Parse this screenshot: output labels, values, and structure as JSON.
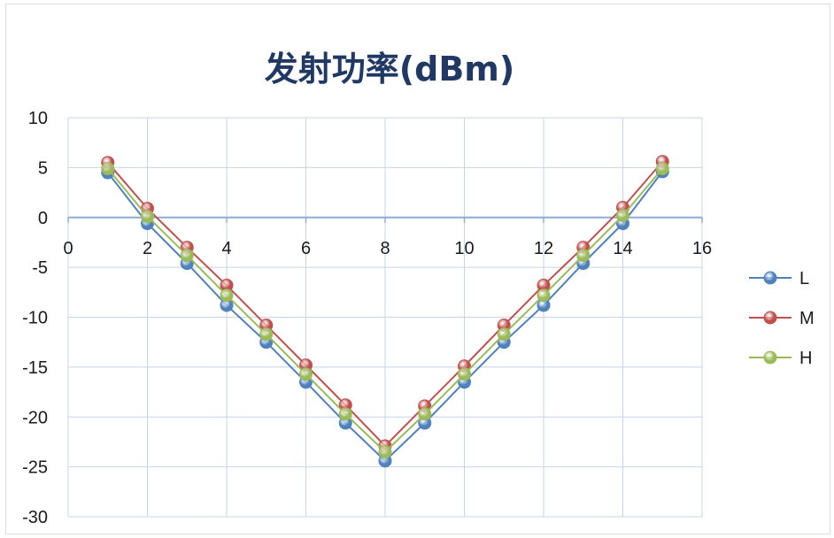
{
  "chart_data": {
    "type": "line",
    "title": "发射功率(dBm)",
    "xlabel": "",
    "ylabel": "",
    "xlim": [
      0,
      16
    ],
    "ylim": [
      -30,
      10
    ],
    "xticks": [
      "0",
      "2",
      "4",
      "6",
      "8",
      "10",
      "12",
      "14",
      "16"
    ],
    "yticks": [
      "10",
      "5",
      "0",
      "-5",
      "-10",
      "-15",
      "-20",
      "-25",
      "-30"
    ],
    "grid": true,
    "legend_position": "right",
    "x": [
      1,
      2,
      3,
      4,
      5,
      6,
      7,
      8,
      9,
      10,
      11,
      12,
      13,
      14,
      15
    ],
    "series": [
      {
        "name": "L",
        "color": "#4f81bd",
        "values": [
          4.5,
          -0.6,
          -4.6,
          -8.8,
          -12.5,
          -16.5,
          -20.6,
          -24.4,
          -20.6,
          -16.5,
          -12.5,
          -8.8,
          -4.6,
          -0.6,
          4.6
        ]
      },
      {
        "name": "M",
        "color": "#c0504d",
        "values": [
          5.5,
          0.9,
          -3.0,
          -6.8,
          -10.8,
          -14.8,
          -18.8,
          -22.9,
          -18.9,
          -14.9,
          -10.8,
          -6.8,
          -3.0,
          1.0,
          5.6
        ]
      },
      {
        "name": "H",
        "color": "#9bbb59",
        "values": [
          4.9,
          0.1,
          -3.8,
          -7.8,
          -11.7,
          -15.7,
          -19.7,
          -23.5,
          -19.7,
          -15.7,
          -11.7,
          -7.8,
          -3.8,
          0.2,
          4.9
        ]
      }
    ]
  }
}
